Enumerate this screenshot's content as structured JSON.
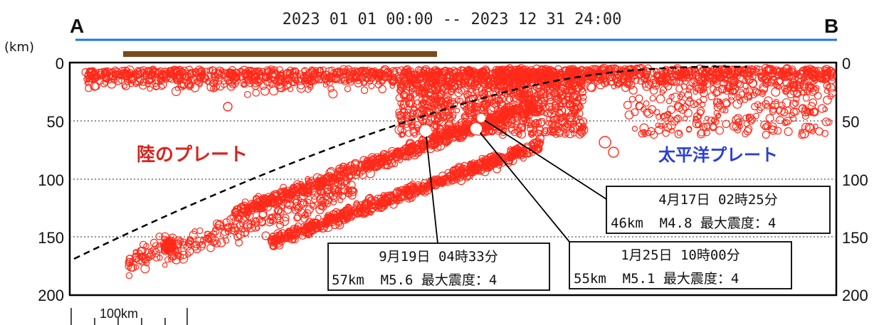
{
  "header": {
    "left_label": "A",
    "right_label": "B",
    "period": "2023 01 01 00:00 -- 2023 12 31 24:00"
  },
  "axis": {
    "unit_label": "(km)",
    "depth_ticks": [
      "0",
      "50",
      "100",
      "150",
      "200"
    ],
    "scale_label": "100km"
  },
  "plates": {
    "land": "陸のプレート",
    "pacific": "太平洋プレート"
  },
  "callouts": [
    {
      "line1": "4月17日 02時25分",
      "line2": "46km  M4.8 最大震度：4"
    },
    {
      "line1": "9月19日 04時33分",
      "line2": "57km  M5.6 最大震度：4"
    },
    {
      "line1": "1月25日 10時00分",
      "line2": "55km  M5.1 最大震度：4"
    }
  ],
  "colors": {
    "quake": "#ff2a1a",
    "land_text": "#d8231f",
    "pacific_text": "#2b3fd1",
    "top_line": "#1e73e8",
    "brown_bar": "#7a4a1c"
  }
}
